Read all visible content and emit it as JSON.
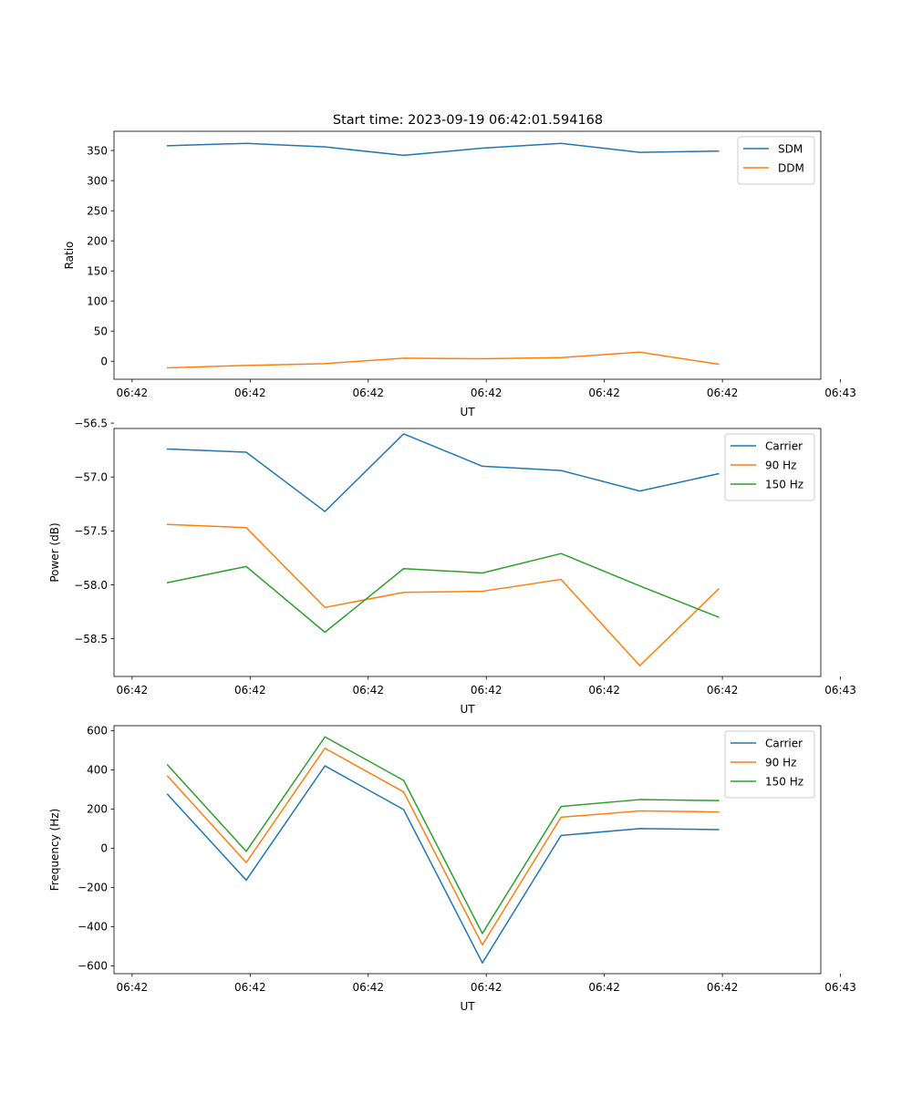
{
  "title": "Start time: 2023-09-19 06:42:01.594168",
  "colors": {
    "blue": "#1f77b4",
    "orange": "#ff7f0e",
    "green": "#2ca02c",
    "axis": "#000000",
    "legend_edge": "#cccccc"
  },
  "chart_data": [
    {
      "type": "line",
      "title": "Start time: 2023-09-19 06:42:01.594168",
      "xlabel": "UT",
      "ylabel": "Ratio",
      "x": [
        1,
        2,
        3,
        4,
        5,
        6,
        7,
        8
      ],
      "xlim": [
        0.32,
        9.3
      ],
      "xticks": [
        0.55,
        2.05,
        3.55,
        5.05,
        6.55,
        8.05,
        9.55
      ],
      "xtick_labels": [
        "06:42",
        "06:42",
        "06:42",
        "06:42",
        "06:42",
        "06:42",
        "06:43"
      ],
      "ylim": [
        -30,
        382
      ],
      "yticks": [
        0,
        50,
        100,
        150,
        200,
        250,
        300,
        350
      ],
      "ytick_labels": [
        "0",
        "50",
        "100",
        "150",
        "200",
        "250",
        "300",
        "350"
      ],
      "legend_position": "top-right",
      "grid": false,
      "series": [
        {
          "name": "SDM",
          "color": "#1f77b4",
          "values": [
            358,
            362,
            356,
            342,
            354,
            362,
            347,
            349
          ]
        },
        {
          "name": "DDM",
          "color": "#ff7f0e",
          "values": [
            -11,
            -7,
            -4,
            5,
            4,
            6,
            15,
            -5
          ]
        }
      ]
    },
    {
      "type": "line",
      "title": "",
      "xlabel": "UT",
      "ylabel": "Power (dB)",
      "x": [
        1,
        2,
        3,
        4,
        5,
        6,
        7,
        8
      ],
      "xlim": [
        0.32,
        9.3
      ],
      "xticks": [
        0.55,
        2.05,
        3.55,
        5.05,
        6.55,
        8.05,
        9.55
      ],
      "xtick_labels": [
        "06:42",
        "06:42",
        "06:42",
        "06:42",
        "06:42",
        "06:42",
        "06:43"
      ],
      "ylim": [
        -58.85,
        -56.55
      ],
      "yticks": [
        -58.5,
        -58.0,
        -57.5,
        -57.0,
        -56.5
      ],
      "ytick_labels": [
        "−58.5",
        "−58.0",
        "−57.5",
        "−57.0",
        "−56.5"
      ],
      "legend_position": "top-right",
      "grid": false,
      "series": [
        {
          "name": "Carrier",
          "color": "#1f77b4",
          "values": [
            -56.74,
            -56.77,
            -57.32,
            -56.6,
            -56.9,
            -56.94,
            -57.13,
            -56.97
          ]
        },
        {
          "name": "90 Hz",
          "color": "#ff7f0e",
          "values": [
            -57.44,
            -57.47,
            -58.21,
            -58.07,
            -58.06,
            -57.95,
            -58.75,
            -58.04
          ]
        },
        {
          "name": "150 Hz",
          "color": "#2ca02c",
          "values": [
            -57.98,
            -57.83,
            -58.44,
            -57.85,
            -57.89,
            -57.71,
            -58.01,
            -58.3
          ]
        }
      ]
    },
    {
      "type": "line",
      "title": "",
      "xlabel": "UT",
      "ylabel": "Frequency (Hz)",
      "x": [
        1,
        2,
        3,
        4,
        5,
        6,
        7,
        8
      ],
      "xlim": [
        0.32,
        9.3
      ],
      "xticks": [
        0.55,
        2.05,
        3.55,
        5.05,
        6.55,
        8.05,
        9.55
      ],
      "xtick_labels": [
        "06:42",
        "06:42",
        "06:42",
        "06:42",
        "06:42",
        "06:42",
        "06:43"
      ],
      "ylim": [
        -640,
        625
      ],
      "yticks": [
        -600,
        -400,
        -200,
        0,
        200,
        400,
        600
      ],
      "ytick_labels": [
        "−600",
        "−400",
        "−200",
        "0",
        "200",
        "400",
        "600"
      ],
      "legend_position": "top-right",
      "grid": false,
      "series": [
        {
          "name": "Carrier",
          "color": "#1f77b4",
          "values": [
            275,
            -163,
            420,
            197,
            -585,
            65,
            100,
            95
          ]
        },
        {
          "name": "90 Hz",
          "color": "#ff7f0e",
          "values": [
            368,
            -73,
            510,
            287,
            -493,
            158,
            190,
            185
          ]
        },
        {
          "name": "150 Hz",
          "color": "#2ca02c",
          "values": [
            425,
            -16,
            568,
            346,
            -435,
            213,
            248,
            243
          ]
        }
      ]
    }
  ]
}
